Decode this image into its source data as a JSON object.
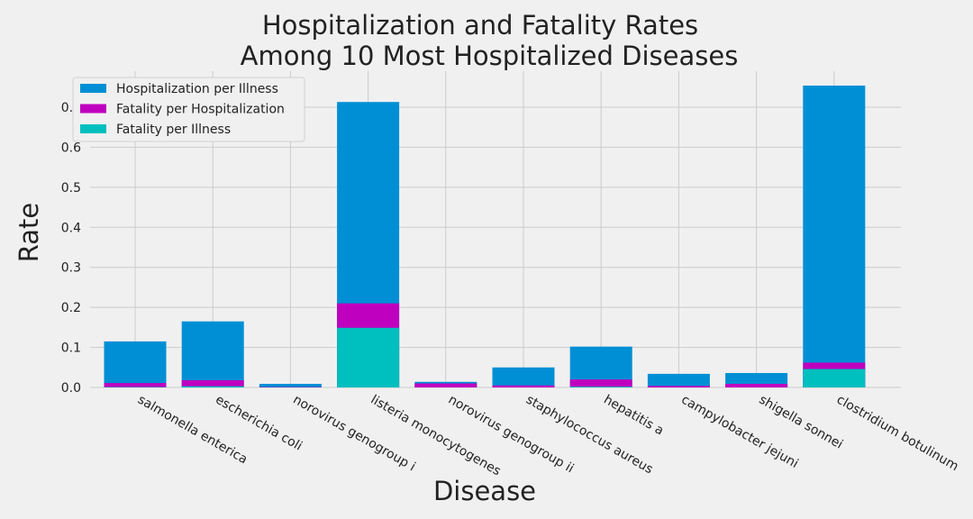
{
  "chart_data": {
    "type": "bar",
    "title": [
      "Hospitalization and Fatality Rates",
      "Among 10 Most Hospitalized Diseases"
    ],
    "xlabel": "Disease",
    "ylabel": "Rate",
    "categories": [
      "salmonella enterica",
      "escherichia coli",
      "norovirus genogroup i",
      "listeria monocytogenes",
      "norovirus genogroup ii",
      "staphylococcus aureus",
      "hepatitis a",
      "campylobacter jejuni",
      "shigella sonnei",
      "clostridium botulinum"
    ],
    "series": [
      {
        "name": "Hospitalization per Illness",
        "color": "#008fd5",
        "values": [
          0.115,
          0.165,
          0.009,
          0.713,
          0.014,
          0.05,
          0.102,
          0.034,
          0.036,
          0.754
        ]
      },
      {
        "name": "Fatality per Hospitalization",
        "color": "#bf00bf",
        "values": [
          0.011,
          0.018,
          0.001,
          0.21,
          0.01,
          0.005,
          0.02,
          0.004,
          0.009,
          0.062
        ]
      },
      {
        "name": "Fatality per Illness",
        "color": "#00bfbf",
        "values": [
          0.001,
          0.003,
          0.0,
          0.149,
          0.0,
          0.0,
          0.002,
          0.0,
          0.0,
          0.046
        ]
      }
    ],
    "ylim": [
      0,
      0.79
    ],
    "yticks": [
      {
        "value": 0,
        "label": "0.0"
      },
      0.1,
      0.2,
      0.3,
      0.4,
      0.5,
      0.6,
      0.7
    ],
    "grid": true,
    "legend": "upper left"
  }
}
